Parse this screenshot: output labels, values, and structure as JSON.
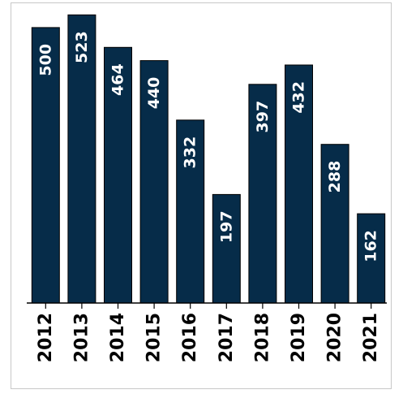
{
  "chart_data": {
    "type": "bar",
    "categories": [
      "2012",
      "2013",
      "2014",
      "2015",
      "2016",
      "2017",
      "2018",
      "2019",
      "2020",
      "2021"
    ],
    "values": [
      500,
      523,
      464,
      440,
      332,
      197,
      397,
      432,
      288,
      162
    ],
    "title": "",
    "xlabel": "",
    "ylabel": "",
    "ylim": [
      0,
      550
    ],
    "grid": false,
    "legend": "none",
    "bar_color": "#062c49",
    "label_color": "#ffffff",
    "axis_color": "#000000"
  }
}
